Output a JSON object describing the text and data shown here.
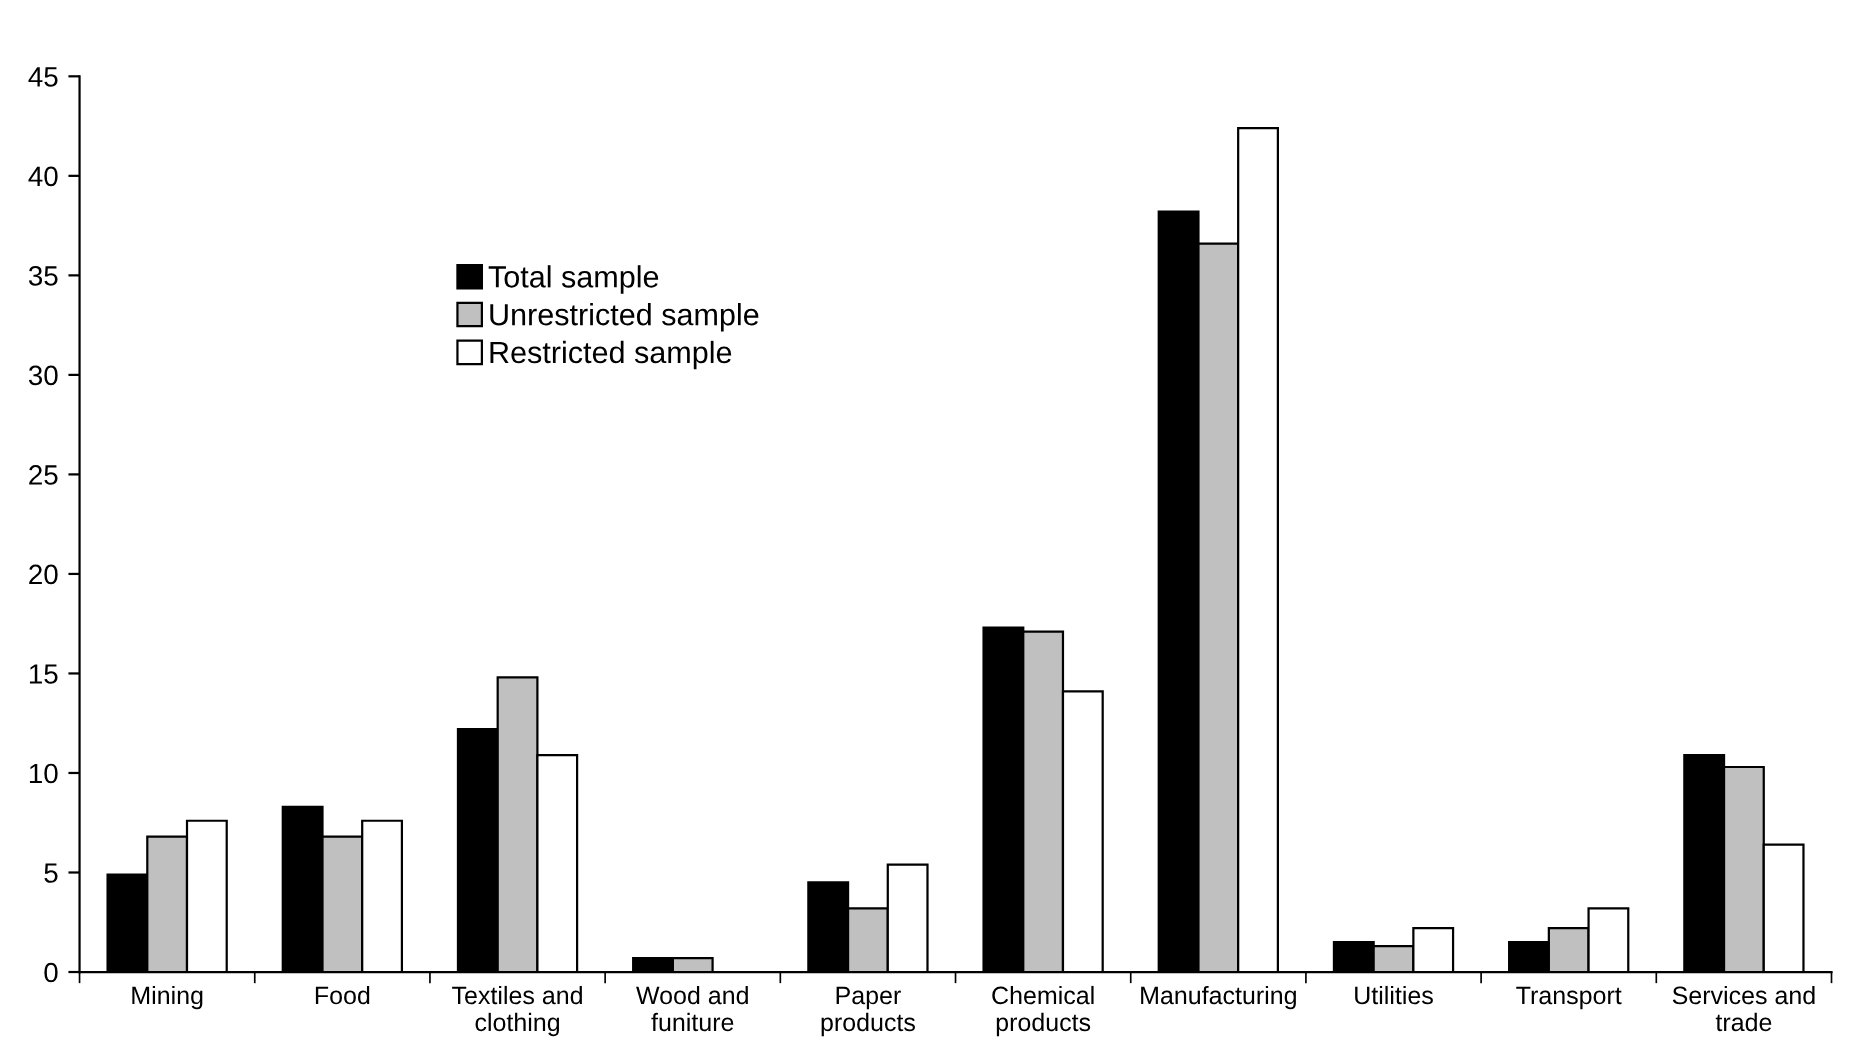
{
  "chart_data": {
    "type": "bar",
    "categories": [
      "Mining",
      "Food",
      "Textiles and\nclothing",
      "Wood and\nfuniture",
      "Paper\nproducts",
      "Chemical\nproducts",
      "Manufacturing",
      "Utilities",
      "Transport",
      "Services and\ntrade"
    ],
    "series": [
      {
        "name": "Total sample",
        "color": "#000000",
        "values": [
          4.9,
          8.3,
          12.2,
          0.7,
          4.5,
          17.3,
          38.2,
          1.5,
          1.5,
          10.9
        ]
      },
      {
        "name": "Unrestricted sample",
        "color": "#c0c0c0",
        "values": [
          6.8,
          6.8,
          14.8,
          0.7,
          3.2,
          17.1,
          36.6,
          1.3,
          2.2,
          10.3
        ]
      },
      {
        "name": "Restricted sample",
        "color": "#ffffff",
        "values": [
          7.6,
          7.6,
          10.9,
          null,
          5.4,
          14.1,
          42.4,
          2.2,
          3.2,
          6.4
        ]
      }
    ],
    "ylim": [
      0,
      45
    ],
    "yticks": [
      0,
      5,
      10,
      15,
      20,
      25,
      30,
      35,
      40,
      45
    ],
    "grid": false,
    "legend": "top left"
  }
}
